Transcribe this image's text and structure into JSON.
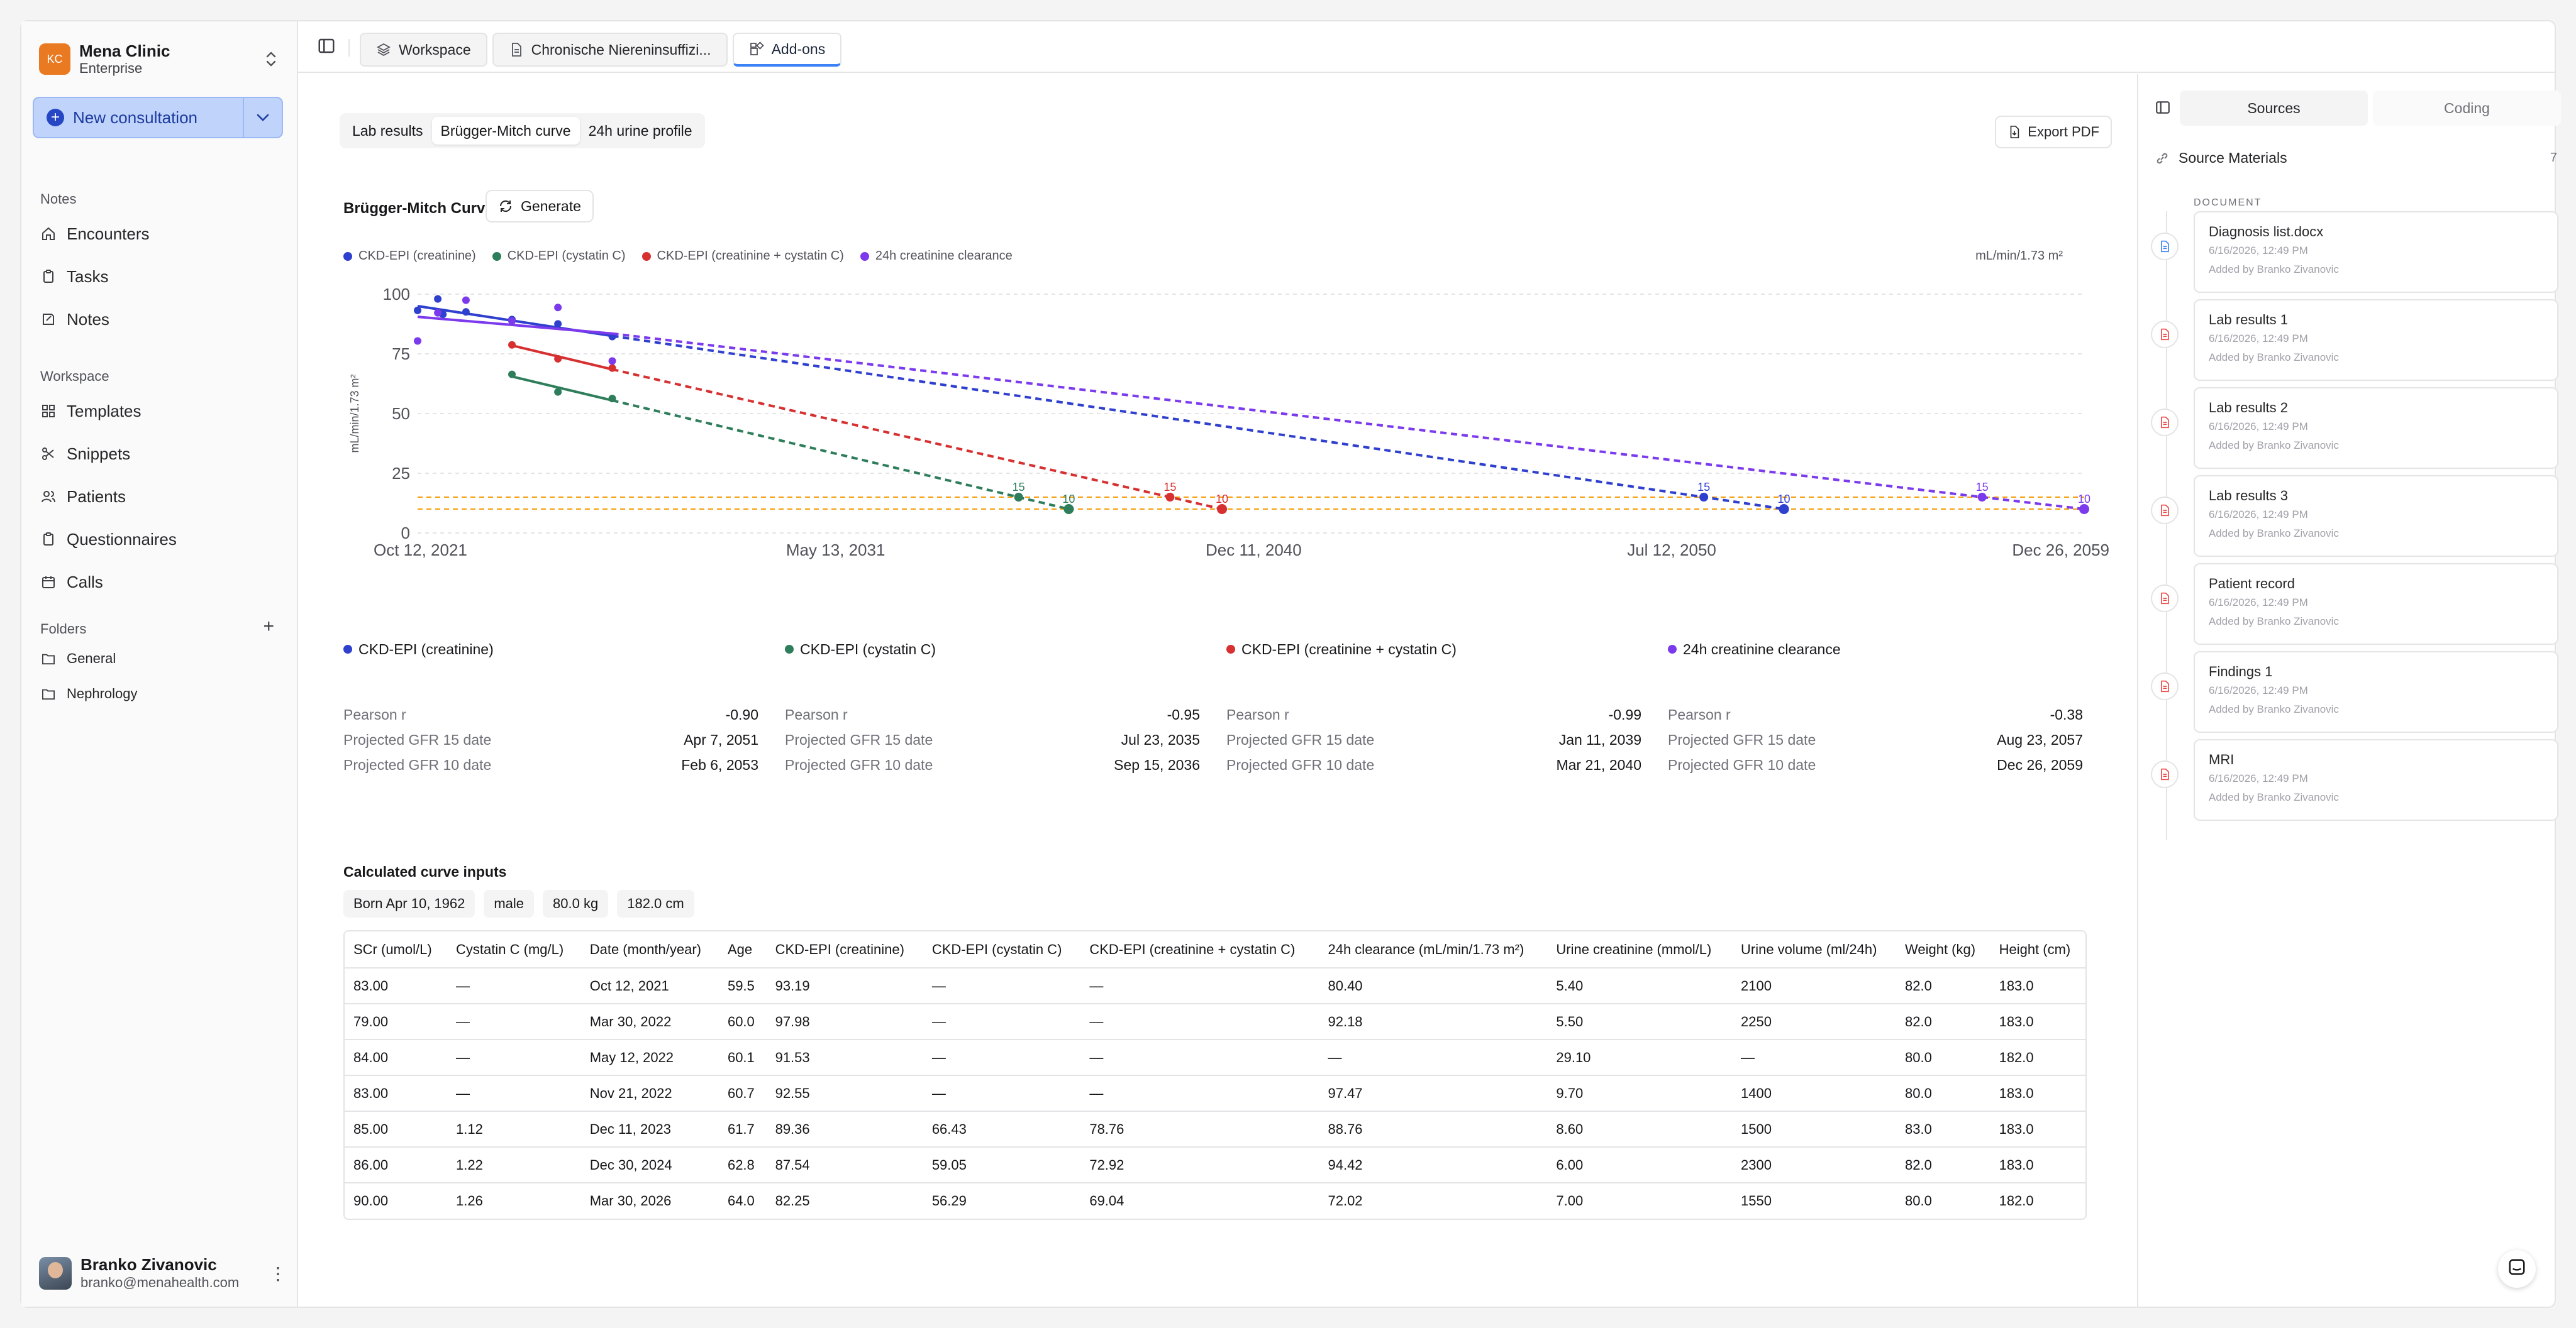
{
  "org": {
    "initials": "KC",
    "name": "Mena Clinic",
    "plan": "Enterprise"
  },
  "new_consultation": {
    "label": "New consultation"
  },
  "nav": {
    "notes_label": "Notes",
    "notes_items": [
      {
        "label": "Encounters",
        "icon": "home-icon"
      },
      {
        "label": "Tasks",
        "icon": "clipboard-icon"
      },
      {
        "label": "Notes",
        "icon": "note-icon"
      }
    ],
    "workspace_label": "Workspace",
    "workspace_items": [
      {
        "label": "Templates",
        "icon": "grid-icon"
      },
      {
        "label": "Snippets",
        "icon": "scissors-icon"
      },
      {
        "label": "Patients",
        "icon": "users-icon"
      },
      {
        "label": "Questionnaires",
        "icon": "clipboard-icon"
      },
      {
        "label": "Calls",
        "icon": "calendar-icon"
      }
    ],
    "folders_label": "Folders",
    "folders": [
      {
        "label": "General"
      },
      {
        "label": "Nephrology"
      }
    ]
  },
  "user": {
    "name": "Branko Zivanovic",
    "email": "branko@menahealth.com"
  },
  "tabs": [
    {
      "label": "Workspace",
      "icon": "layers-icon"
    },
    {
      "label": "Chronische Niereninsuffizi...",
      "icon": "document-icon"
    },
    {
      "label": "Add-ons",
      "icon": "addons-icon"
    }
  ],
  "subtabs": [
    {
      "label": "Lab results"
    },
    {
      "label": "Brügger-Mitch curve"
    },
    {
      "label": "24h urine profile"
    }
  ],
  "export_label": "Export PDF",
  "chart_title": "Brügger-Mitch Curve",
  "generate_label": "Generate",
  "unit_label": "mL/min/1.73 m²",
  "chart_data": {
    "type": "scatter",
    "ylabel": "mL/min/1.73 m²",
    "ylim": [
      0,
      100
    ],
    "yticks": [
      0,
      25,
      50,
      75,
      100
    ],
    "xlim": [
      "2021-10-12",
      "2059-12-26"
    ],
    "xticks": [
      "Oct 12, 2021",
      "May 13, 2031",
      "Dec 11, 2040",
      "Jul 12, 2050",
      "Dec 26, 2059"
    ],
    "xtick_dates": [
      "2021-10-12",
      "2031-05-13",
      "2040-12-11",
      "2050-07-12",
      "2059-12-26"
    ],
    "threshold_lines": [
      15,
      10
    ],
    "threshold_color": "#f59e0b",
    "series": [
      {
        "name": "CKD-EPI (creatinine)",
        "color": "#2f3fce",
        "points": [
          [
            "2021-10-12",
            93.19
          ],
          [
            "2022-03-30",
            97.98
          ],
          [
            "2022-05-12",
            91.53
          ],
          [
            "2022-11-21",
            92.55
          ],
          [
            "2023-12-11",
            89.36
          ],
          [
            "2024-12-30",
            87.54
          ],
          [
            "2026-03-30",
            82.25
          ]
        ],
        "fit": [
          [
            "2021-10-12",
            95.0
          ],
          [
            "2026-03-30",
            82.5
          ]
        ],
        "projection": [
          [
            "2026-03-30",
            82.5
          ],
          [
            "2051-04-07",
            15
          ],
          [
            "2053-02-06",
            10
          ]
        ],
        "label_15": "15",
        "label_10": "10"
      },
      {
        "name": "CKD-EPI (cystatin C)",
        "color": "#2e7d5b",
        "points": [
          [
            "2023-12-11",
            66.43
          ],
          [
            "2024-12-30",
            59.05
          ],
          [
            "2026-03-30",
            56.29
          ]
        ],
        "fit": [
          [
            "2023-12-11",
            65.5
          ],
          [
            "2026-03-30",
            55.5
          ]
        ],
        "projection": [
          [
            "2026-03-30",
            55.5
          ],
          [
            "2035-07-23",
            15
          ],
          [
            "2036-09-15",
            10
          ]
        ],
        "label_15": "15",
        "label_10": "10"
      },
      {
        "name": "CKD-EPI (creatinine + cystatin C)",
        "color": "#d63031",
        "points": [
          [
            "2023-12-11",
            78.76
          ],
          [
            "2024-12-30",
            72.92
          ],
          [
            "2026-03-30",
            69.04
          ]
        ],
        "fit": [
          [
            "2023-12-11",
            78.5
          ],
          [
            "2026-03-30",
            68.5
          ]
        ],
        "projection": [
          [
            "2026-03-30",
            68.5
          ],
          [
            "2039-01-11",
            15
          ],
          [
            "2040-03-21",
            10
          ]
        ],
        "label_15": "15",
        "label_10": "10"
      },
      {
        "name": "24h creatinine clearance",
        "color": "#7c3aed",
        "points": [
          [
            "2021-10-12",
            80.4
          ],
          [
            "2022-03-30",
            92.18
          ],
          [
            "2022-11-21",
            97.47
          ],
          [
            "2023-12-11",
            88.76
          ],
          [
            "2024-12-30",
            94.42
          ],
          [
            "2026-03-30",
            72.02
          ]
        ],
        "fit": [
          [
            "2021-10-12",
            90.5
          ],
          [
            "2026-03-30",
            83.5
          ]
        ],
        "projection": [
          [
            "2026-03-30",
            83.5
          ],
          [
            "2057-08-23",
            15
          ],
          [
            "2059-12-26",
            10
          ]
        ],
        "label_15": "15",
        "label_10": "10"
      }
    ]
  },
  "stats": [
    {
      "name": "CKD-EPI (creatinine)",
      "color": "#2f3fce",
      "pearson_label": "Pearson r",
      "pearson": "-0.90",
      "gfr15_label": "Projected GFR 15 date",
      "gfr15": "Apr 7, 2051",
      "gfr10_label": "Projected GFR 10 date",
      "gfr10": "Feb 6, 2053"
    },
    {
      "name": "CKD-EPI (cystatin C)",
      "color": "#2e7d5b",
      "pearson_label": "Pearson r",
      "pearson": "-0.95",
      "gfr15_label": "Projected GFR 15 date",
      "gfr15": "Jul 23, 2035",
      "gfr10_label": "Projected GFR 10 date",
      "gfr10": "Sep 15, 2036"
    },
    {
      "name": "CKD-EPI (creatinine + cystatin C)",
      "color": "#d63031",
      "pearson_label": "Pearson r",
      "pearson": "-0.99",
      "gfr15_label": "Projected GFR 15 date",
      "gfr15": "Jan 11, 2039",
      "gfr10_label": "Projected GFR 10 date",
      "gfr10": "Mar 21, 2040"
    },
    {
      "name": "24h creatinine clearance",
      "color": "#7c3aed",
      "pearson_label": "Pearson r",
      "pearson": "-0.38",
      "gfr15_label": "Projected GFR 15 date",
      "gfr15": "Aug 23, 2057",
      "gfr10_label": "Projected GFR 10 date",
      "gfr10": "Dec 26, 2059"
    }
  ],
  "inputs": {
    "title": "Calculated curve inputs",
    "chips": [
      "Born Apr 10, 1962",
      "male",
      "80.0 kg",
      "182.0 cm"
    ],
    "headers": [
      "SCr (umol/L)",
      "Cystatin C (mg/L)",
      "Date (month/year)",
      "Age",
      "CKD-EPI (creatinine)",
      "CKD-EPI (cystatin C)",
      "CKD-EPI (creatinine + cystatin C)",
      "24h clearance (mL/min/1.73 m²)",
      "Urine creatinine (mmol/L)",
      "Urine volume (ml/24h)",
      "Weight (kg)",
      "Height (cm)"
    ],
    "rows": [
      [
        "83.00",
        "—",
        "Oct 12, 2021",
        "59.5",
        "93.19",
        "—",
        "—",
        "80.40",
        "5.40",
        "2100",
        "82.0",
        "183.0"
      ],
      [
        "79.00",
        "—",
        "Mar 30, 2022",
        "60.0",
        "97.98",
        "—",
        "—",
        "92.18",
        "5.50",
        "2250",
        "82.0",
        "183.0"
      ],
      [
        "84.00",
        "—",
        "May 12, 2022",
        "60.1",
        "91.53",
        "—",
        "—",
        "—",
        "29.10",
        "—",
        "80.0",
        "182.0"
      ],
      [
        "83.00",
        "—",
        "Nov 21, 2022",
        "60.7",
        "92.55",
        "—",
        "—",
        "97.47",
        "9.70",
        "1400",
        "80.0",
        "183.0"
      ],
      [
        "85.00",
        "1.12",
        "Dec 11, 2023",
        "61.7",
        "89.36",
        "66.43",
        "78.76",
        "88.76",
        "8.60",
        "1500",
        "83.0",
        "183.0"
      ],
      [
        "86.00",
        "1.22",
        "Dec 30, 2024",
        "62.8",
        "87.54",
        "59.05",
        "72.92",
        "94.42",
        "6.00",
        "2300",
        "82.0",
        "183.0"
      ],
      [
        "90.00",
        "1.26",
        "Mar 30, 2026",
        "64.0",
        "82.25",
        "56.29",
        "69.04",
        "72.02",
        "7.00",
        "1550",
        "80.0",
        "182.0"
      ]
    ]
  },
  "right_panel": {
    "tabs": [
      {
        "label": "Sources"
      },
      {
        "label": "Coding"
      }
    ],
    "heading": "Source Materials",
    "count": "7",
    "section_label": "DOCUMENT",
    "sources": [
      {
        "title": "Diagnosis list.docx",
        "date": "6/16/2026, 12:49 PM",
        "added": "Added by Branko Zivanovic",
        "icon": "docx-icon",
        "color": "#3b82f6"
      },
      {
        "title": "Lab results 1",
        "date": "6/16/2026, 12:49 PM",
        "added": "Added by Branko Zivanovic",
        "icon": "pdf-icon",
        "color": "#ef4444"
      },
      {
        "title": "Lab results 2",
        "date": "6/16/2026, 12:49 PM",
        "added": "Added by Branko Zivanovic",
        "icon": "pdf-icon",
        "color": "#ef4444"
      },
      {
        "title": "Lab results 3",
        "date": "6/16/2026, 12:49 PM",
        "added": "Added by Branko Zivanovic",
        "icon": "pdf-icon",
        "color": "#ef4444"
      },
      {
        "title": "Patient record",
        "date": "6/16/2026, 12:49 PM",
        "added": "Added by Branko Zivanovic",
        "icon": "pdf-icon",
        "color": "#ef4444"
      },
      {
        "title": "Findings 1",
        "date": "6/16/2026, 12:49 PM",
        "added": "Added by Branko Zivanovic",
        "icon": "pdf-icon",
        "color": "#ef4444"
      },
      {
        "title": "MRI",
        "date": "6/16/2026, 12:49 PM",
        "added": "Added by Branko Zivanovic",
        "icon": "pdf-icon",
        "color": "#ef4444"
      }
    ]
  }
}
